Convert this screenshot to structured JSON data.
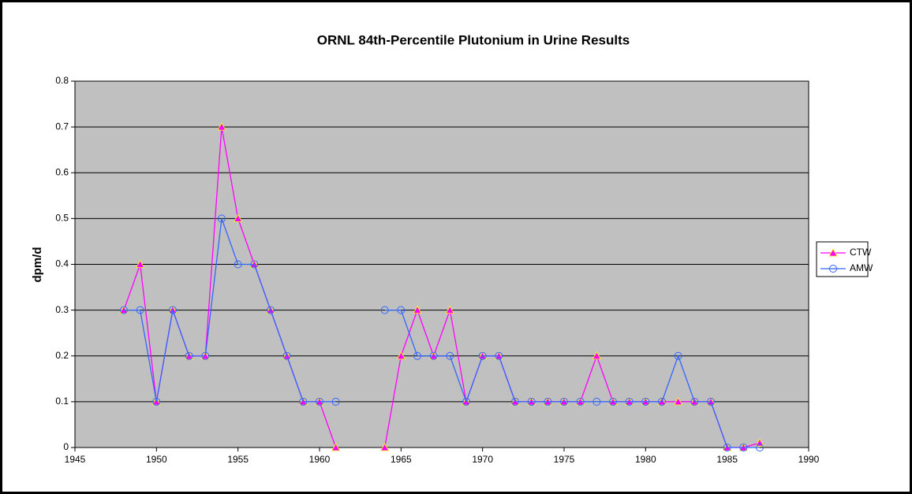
{
  "chart_data": {
    "type": "line",
    "title": "ORNL 84th-Percentile Plutonium in Urine Results",
    "y_label": "dpm/d",
    "x": [
      1948,
      1949,
      1950,
      1951,
      1952,
      1953,
      1954,
      1955,
      1956,
      1957,
      1958,
      1959,
      1960,
      1961,
      1962,
      1963,
      1964,
      1965,
      1966,
      1967,
      1968,
      1969,
      1970,
      1971,
      1972,
      1973,
      1974,
      1975,
      1976,
      1977,
      1978,
      1979,
      1980,
      1981,
      1982,
      1983,
      1984,
      1985,
      1986,
      1987
    ],
    "series": [
      {
        "name": "CTW",
        "color": "#ff00ff",
        "marker": "triangle",
        "values": [
          0.3,
          0.4,
          0.1,
          0.3,
          0.2,
          0.2,
          0.7,
          0.5,
          0.4,
          0.3,
          0.2,
          0.1,
          0.1,
          0,
          null,
          null,
          0,
          0.2,
          0.3,
          0.2,
          0.3,
          0.1,
          0.2,
          0.2,
          0.1,
          0.1,
          0.1,
          0.1,
          0.1,
          0.2,
          0.1,
          0.1,
          0.1,
          0.1,
          0.1,
          0.1,
          0.1,
          0,
          0,
          0.01
        ]
      },
      {
        "name": "AMW",
        "color": "#3366ff",
        "marker": "circle",
        "values": [
          0.3,
          0.3,
          0.1,
          0.3,
          0.2,
          0.2,
          0.5,
          0.4,
          0.4,
          0.3,
          0.2,
          0.1,
          0.1,
          0.1,
          null,
          null,
          0.3,
          0.3,
          0.2,
          0.2,
          0.2,
          0.1,
          0.2,
          0.2,
          0.1,
          0.1,
          0.1,
          0.1,
          0.1,
          0.1,
          0.1,
          0.1,
          0.1,
          0.1,
          0.2,
          0.1,
          0.1,
          0,
          0,
          0
        ]
      }
    ],
    "xlim": [
      1945,
      1990
    ],
    "xticks": [
      1945,
      1950,
      1955,
      1960,
      1965,
      1970,
      1975,
      1980,
      1985,
      1990
    ],
    "ylim": [
      0,
      0.8
    ],
    "yticks": [
      0,
      0.1,
      0.2,
      0.3,
      0.4,
      0.5,
      0.6,
      0.7,
      0.8
    ],
    "grid": true,
    "legend": "right",
    "plot_background": "#c0c0c0"
  }
}
